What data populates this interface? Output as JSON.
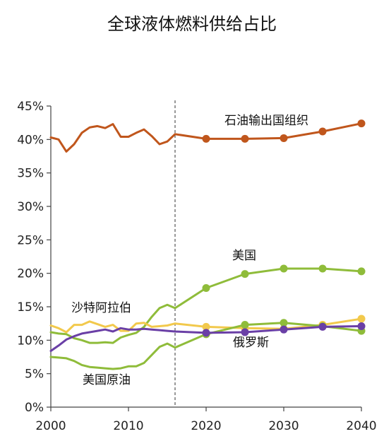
{
  "chart_data": {
    "type": "line",
    "title": "全球液体燃料供给占比",
    "xlabel": "",
    "ylabel": "",
    "xlim": [
      2000,
      2040
    ],
    "ylim": [
      0,
      45
    ],
    "x_ticks": [
      "2000",
      "2010",
      "2020",
      "2030",
      "2040"
    ],
    "y_ticks": [
      "0%",
      "5%",
      "10%",
      "15%",
      "20%",
      "25%",
      "30%",
      "35%",
      "40%",
      "45%"
    ],
    "forecast_divider_x": 2016,
    "legend": "inline labels",
    "grid": false,
    "series": [
      {
        "name": "石油输出国组织",
        "color": "#c0561c",
        "history": [
          [
            2000,
            40.3
          ],
          [
            2001,
            40.0
          ],
          [
            2002,
            38.2
          ],
          [
            2003,
            39.3
          ],
          [
            2004,
            41.0
          ],
          [
            2005,
            41.8
          ],
          [
            2006,
            42.0
          ],
          [
            2007,
            41.7
          ],
          [
            2008,
            42.3
          ],
          [
            2009,
            40.4
          ],
          [
            2010,
            40.4
          ],
          [
            2011,
            41.0
          ],
          [
            2012,
            41.5
          ],
          [
            2013,
            40.5
          ],
          [
            2014,
            39.3
          ],
          [
            2015,
            39.7
          ],
          [
            2016,
            40.8
          ]
        ],
        "forecast": [
          [
            2016,
            40.8
          ],
          [
            2020,
            40.1
          ],
          [
            2025,
            40.1
          ],
          [
            2030,
            40.2
          ],
          [
            2035,
            41.2
          ],
          [
            2040,
            42.4
          ]
        ],
        "markers": [
          [
            2020,
            40.1
          ],
          [
            2025,
            40.1
          ],
          [
            2030,
            40.2
          ],
          [
            2035,
            41.2
          ],
          [
            2040,
            42.4
          ]
        ]
      },
      {
        "name": "美国",
        "color": "#8fbc3a",
        "history": [
          [
            2000,
            11.2
          ],
          [
            2001,
            11.0
          ],
          [
            2002,
            10.9
          ],
          [
            2003,
            10.3
          ],
          [
            2004,
            10.0
          ],
          [
            2005,
            9.6
          ],
          [
            2006,
            9.6
          ],
          [
            2007,
            9.7
          ],
          [
            2008,
            9.6
          ],
          [
            2009,
            10.4
          ],
          [
            2010,
            10.8
          ],
          [
            2011,
            11.1
          ],
          [
            2012,
            12.0
          ],
          [
            2013,
            13.5
          ],
          [
            2014,
            14.8
          ],
          [
            2015,
            15.3
          ],
          [
            2016,
            14.8
          ]
        ],
        "forecast": [
          [
            2016,
            14.8
          ],
          [
            2020,
            17.8
          ],
          [
            2025,
            19.9
          ],
          [
            2030,
            20.7
          ],
          [
            2035,
            20.7
          ],
          [
            2040,
            20.3
          ]
        ],
        "markers": [
          [
            2020,
            17.8
          ],
          [
            2025,
            19.9
          ],
          [
            2030,
            20.7
          ],
          [
            2035,
            20.7
          ],
          [
            2040,
            20.3
          ]
        ]
      },
      {
        "name": "沙特阿拉伯",
        "color": "#f2c94c",
        "history": [
          [
            2000,
            12.2
          ],
          [
            2001,
            11.8
          ],
          [
            2002,
            11.2
          ],
          [
            2003,
            12.3
          ],
          [
            2004,
            12.3
          ],
          [
            2005,
            12.8
          ],
          [
            2006,
            12.4
          ],
          [
            2007,
            12.0
          ],
          [
            2008,
            12.3
          ],
          [
            2009,
            11.4
          ],
          [
            2010,
            11.4
          ],
          [
            2011,
            12.5
          ],
          [
            2012,
            12.6
          ],
          [
            2013,
            12.0
          ],
          [
            2014,
            12.1
          ],
          [
            2015,
            12.2
          ],
          [
            2016,
            12.5
          ]
        ],
        "forecast": [
          [
            2016,
            12.5
          ],
          [
            2020,
            12.0
          ],
          [
            2025,
            11.8
          ],
          [
            2030,
            11.7
          ],
          [
            2035,
            12.3
          ],
          [
            2040,
            13.2
          ]
        ],
        "markers": [
          [
            2020,
            12.0
          ],
          [
            2025,
            11.8
          ],
          [
            2030,
            11.7
          ],
          [
            2035,
            12.3
          ],
          [
            2040,
            13.2
          ]
        ]
      },
      {
        "name": "美国原油",
        "color": "#8fbc3a",
        "history": [
          [
            2000,
            7.5
          ],
          [
            2001,
            7.4
          ],
          [
            2002,
            7.3
          ],
          [
            2003,
            6.9
          ],
          [
            2004,
            6.3
          ],
          [
            2005,
            6.0
          ],
          [
            2006,
            5.9
          ],
          [
            2007,
            5.8
          ],
          [
            2008,
            5.7
          ],
          [
            2009,
            5.8
          ],
          [
            2010,
            6.1
          ],
          [
            2011,
            6.1
          ],
          [
            2012,
            6.6
          ],
          [
            2013,
            7.8
          ],
          [
            2014,
            9.0
          ],
          [
            2015,
            9.5
          ],
          [
            2016,
            8.9
          ]
        ],
        "forecast": [
          [
            2016,
            8.9
          ],
          [
            2020,
            10.9
          ],
          [
            2025,
            12.3
          ],
          [
            2030,
            12.6
          ],
          [
            2035,
            12.1
          ],
          [
            2040,
            11.4
          ]
        ],
        "markers": [
          [
            2020,
            10.9
          ],
          [
            2025,
            12.3
          ],
          [
            2030,
            12.6
          ],
          [
            2035,
            12.1
          ],
          [
            2040,
            11.4
          ]
        ]
      },
      {
        "name": "俄罗斯",
        "color": "#6a3fa6",
        "history": [
          [
            2000,
            8.4
          ],
          [
            2001,
            9.2
          ],
          [
            2002,
            10.1
          ],
          [
            2003,
            10.6
          ],
          [
            2004,
            11.0
          ],
          [
            2005,
            11.2
          ],
          [
            2006,
            11.4
          ],
          [
            2007,
            11.6
          ],
          [
            2008,
            11.3
          ],
          [
            2009,
            11.8
          ],
          [
            2010,
            11.6
          ],
          [
            2011,
            11.6
          ],
          [
            2012,
            11.7
          ],
          [
            2013,
            11.6
          ],
          [
            2014,
            11.5
          ],
          [
            2015,
            11.4
          ],
          [
            2016,
            11.3
          ]
        ],
        "forecast": [
          [
            2016,
            11.3
          ],
          [
            2020,
            11.1
          ],
          [
            2025,
            11.2
          ],
          [
            2030,
            11.6
          ],
          [
            2035,
            12.0
          ],
          [
            2040,
            12.1
          ]
        ],
        "markers": [
          [
            2020,
            11.1
          ],
          [
            2025,
            11.2
          ],
          [
            2030,
            11.6
          ],
          [
            2035,
            12.0
          ],
          [
            2040,
            12.1
          ]
        ]
      }
    ],
    "labels": {
      "opec": "石油输出国组织",
      "us": "美国",
      "saudi": "沙特阿拉伯",
      "us_crude": "美国原油",
      "russia": "俄罗斯"
    }
  }
}
